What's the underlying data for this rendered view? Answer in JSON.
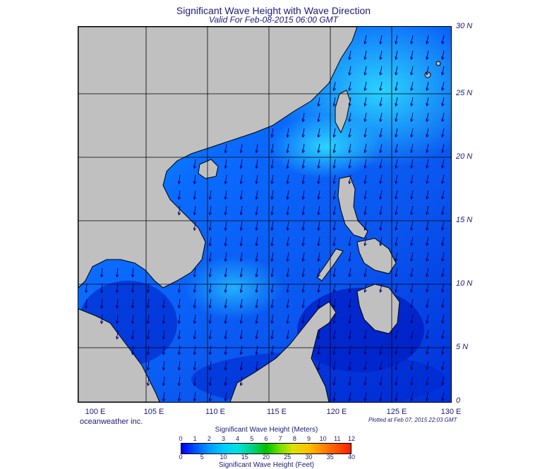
{
  "title": "Significant Wave Height with Wave Direction",
  "subtitle": "Valid For Feb-08-2015 06:00 GMT",
  "lat_labels": [
    "30 N",
    "25 N",
    "20 N",
    "15 N",
    "10 N",
    "5 N",
    "0"
  ],
  "lon_labels": [
    "100 E",
    "105 E",
    "110 E",
    "115 E",
    "120 E",
    "125 E",
    "130 E"
  ],
  "credit": "oceanweather inc.",
  "plotted": "Plotted at Feb 07, 2015 22:03 GMT",
  "colorbar": {
    "title_meters": "Significant Wave Height (Meters)",
    "title_feet": "Significant Wave Height (Feet)",
    "meters_ticks": [
      "0",
      "1",
      "2",
      "3",
      "4",
      "5",
      "6",
      "7",
      "8",
      "9",
      "10",
      "11",
      "12"
    ],
    "feet_ticks": [
      "0",
      "5",
      "10",
      "15",
      "20",
      "25",
      "30",
      "35",
      "40"
    ]
  },
  "colors": {
    "land": "#c0c0c0",
    "text": "#1a1a7a",
    "sea_low": "#0022cc",
    "sea_mid": "#0066ff",
    "sea_high": "#00ccff",
    "arrow": "#000066"
  },
  "wave_direction": "northeast-to-southwest (arrows pointing SSW)"
}
